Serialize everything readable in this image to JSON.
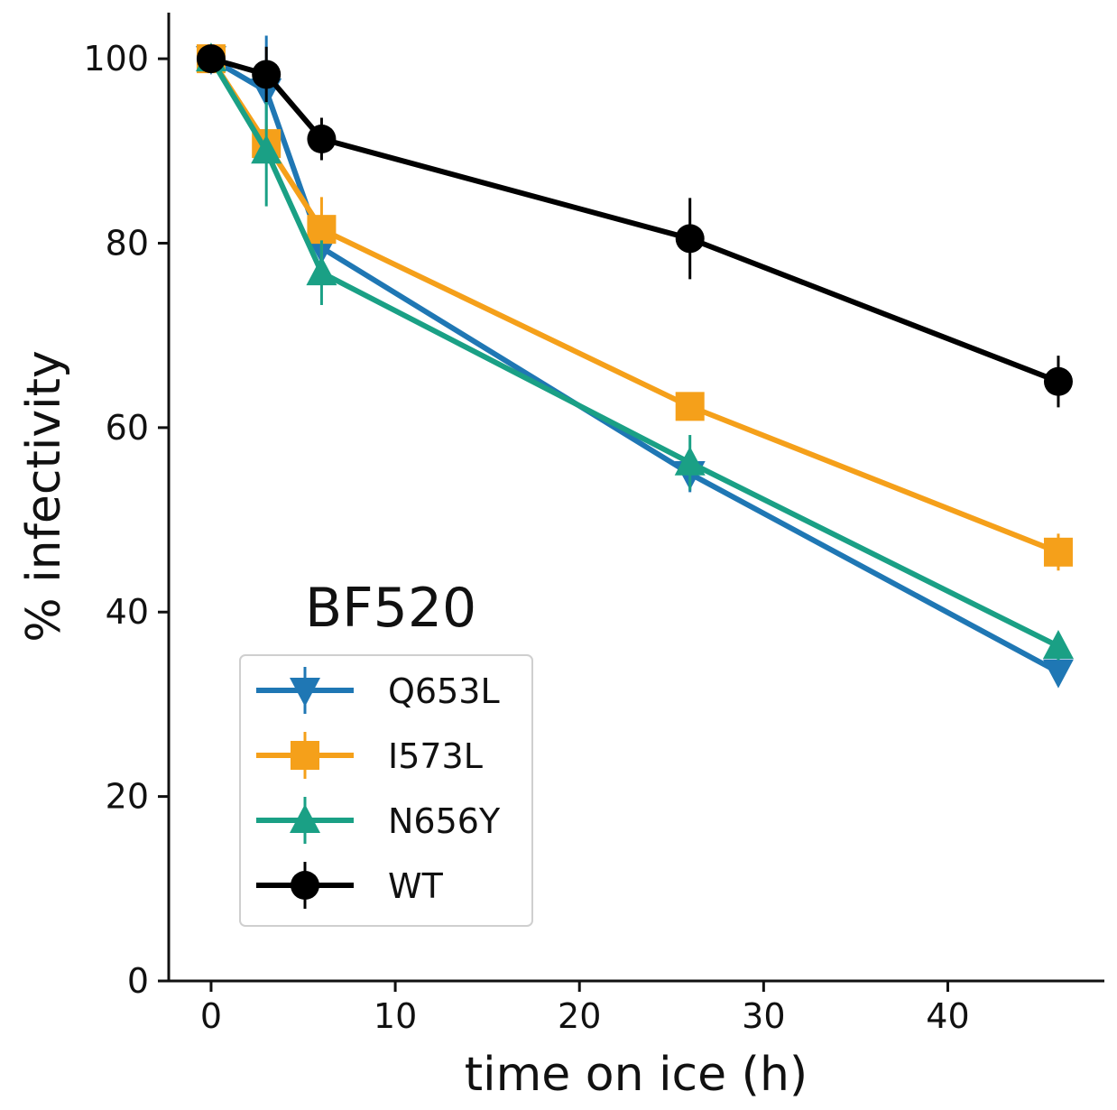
{
  "chart_data": {
    "type": "line",
    "title": "",
    "annotation": "BF520",
    "xlabel": "time on ice (h)",
    "ylabel": "% infectivity",
    "xlim": [
      -2.3,
      48.5
    ],
    "ylim": [
      0,
      105
    ],
    "xticks": [
      0,
      10,
      20,
      30,
      40
    ],
    "yticks": [
      0,
      20,
      40,
      60,
      80,
      100
    ],
    "xtick_labels": [
      "0",
      "10",
      "20",
      "30",
      "40"
    ],
    "ytick_labels": [
      "0",
      "20",
      "40",
      "60",
      "80",
      "100"
    ],
    "grid": false,
    "legend_position": "lower-left",
    "x": [
      0,
      3,
      6,
      26,
      46
    ],
    "series": [
      {
        "name": "Q653L",
        "color": "#1f77b4",
        "marker": "triangle-down",
        "values": [
          100,
          96.5,
          79.5,
          55,
          33.5
        ],
        "errors": [
          0.5,
          6,
          2,
          2,
          1.5
        ]
      },
      {
        "name": "I573L",
        "color": "#f5a01a",
        "marker": "square",
        "values": [
          100,
          90.8,
          81.5,
          62.3,
          46.5
        ],
        "errors": [
          0.5,
          2,
          3.5,
          1.5,
          2
        ]
      },
      {
        "name": "N656Y",
        "color": "#1aa085",
        "marker": "triangle-up",
        "values": [
          100,
          90,
          76.8,
          56.2,
          36.3
        ],
        "errors": [
          0.5,
          6,
          3.5,
          3,
          1.5
        ]
      },
      {
        "name": "WT",
        "color": "#000000",
        "marker": "circle",
        "values": [
          100,
          98.3,
          91.3,
          80.5,
          65
        ],
        "errors": [
          0.5,
          3,
          2.3,
          4.4,
          2.8
        ]
      }
    ]
  }
}
